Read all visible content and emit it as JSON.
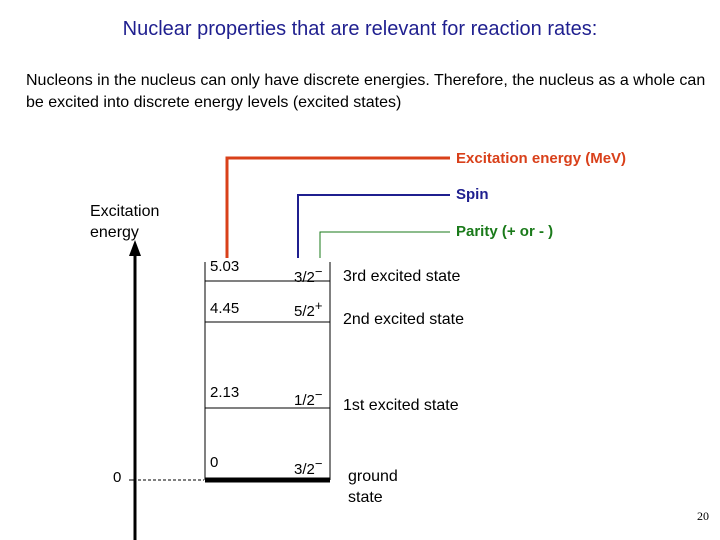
{
  "title": "Nuclear properties that are relevant for reaction rates:",
  "intro": "Nucleons in the nucleus can only have discrete energies. Therefore, the nucleus as a whole can be excited into discrete energy levels (excited states)",
  "legend": {
    "energy_label": "Excitation energy (MeV)",
    "spin_label": "Spin",
    "parity_label": "Parity (+ or - )"
  },
  "axis": {
    "label": "Excitation energy",
    "zero_label": "0"
  },
  "levels": [
    {
      "energy": "5.03",
      "spin": "3/2",
      "parity": "−",
      "state": "3rd excited state"
    },
    {
      "energy": "4.45",
      "spin": "5/2",
      "parity": "+",
      "state": "2nd excited state"
    },
    {
      "energy": "2.13",
      "spin": "1/2",
      "parity": "−",
      "state": "1st excited state"
    },
    {
      "energy": "0",
      "spin": "3/2",
      "parity": "−",
      "state": "ground state"
    }
  ],
  "colors": {
    "energy": "#d9401a",
    "spin": "#1f1f8f",
    "parity": "#1a7a1a"
  },
  "page_number": "20"
}
